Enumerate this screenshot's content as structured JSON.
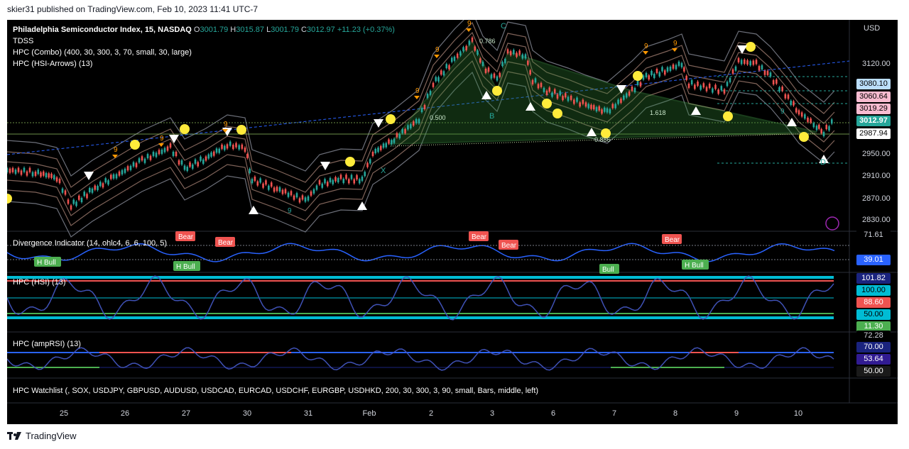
{
  "publisher": "skier31 published on TradingView.com, Feb 10, 2023 11:41 UTC-7",
  "main_pane": {
    "title": "Philadelphia Semiconductor Index, 15, NASDAQ",
    "ohlc": {
      "o_label": "O",
      "o": "3001.79",
      "h_label": "H",
      "h": "3015.87",
      "l_label": "L",
      "l": "3001.79",
      "c_label": "C",
      "c": "3012.97",
      "change": "+11.23 (+0.37%)"
    },
    "indicators": [
      "TDSS",
      "HPC (Combo) (400, 30, 300, 3, 70, small, 30, large)",
      "HPC (HSI-Arrows) (13)"
    ],
    "currency": "USD",
    "y_axis": [
      "3120.00",
      "2950.00",
      "2910.00",
      "2870.00",
      "2830.00"
    ],
    "price_tags": [
      {
        "value": "3080.10",
        "bg": "#bbdefb",
        "fg": "#000000"
      },
      {
        "value": "3060.64",
        "bg": "#f8bbd0",
        "fg": "#000000"
      },
      {
        "value": "3019.29",
        "bg": "#f8bbd0",
        "fg": "#000000"
      },
      {
        "value": "3012.97",
        "bg": "#26a69a",
        "fg": "#ffffff"
      },
      {
        "value": "2987.94",
        "bg": "#ffffff",
        "fg": "#000000"
      }
    ],
    "fib_labels": [
      "0.786",
      "0.500",
      "1.618",
      "0.886"
    ],
    "pattern_labels": [
      "C",
      "B",
      "X",
      "D"
    ],
    "count_label": "9"
  },
  "panes": [
    {
      "title": "Divergence Indicator (14, ohlc4, 6, 6, 100, 5)",
      "tags": [
        {
          "value": "71.61",
          "bg": "#000000",
          "fg": "#d1d4dc"
        },
        {
          "value": "39.01",
          "bg": "#2962ff",
          "fg": "#ffffff"
        }
      ],
      "labels": {
        "bear": "Bear",
        "hbull": "H Bull",
        "bull": "Bull"
      }
    },
    {
      "title": "HPC (HSI) (13)",
      "tags": [
        {
          "value": "101.82",
          "bg": "#1a237e",
          "fg": "#ffffff"
        },
        {
          "value": "100.00",
          "bg": "#00bcd4",
          "fg": "#000000"
        },
        {
          "value": "88.60",
          "bg": "#ef5350",
          "fg": "#ffffff"
        },
        {
          "value": "50.00",
          "bg": "#00bcd4",
          "fg": "#000000"
        },
        {
          "value": "11.30",
          "bg": "#4caf50",
          "fg": "#ffffff"
        }
      ]
    },
    {
      "title": "HPC (ampRSI) (13)",
      "tags": [
        {
          "value": "72.28",
          "bg": "#000000",
          "fg": "#d1d4dc"
        },
        {
          "value": "70.00",
          "bg": "#1a237e",
          "fg": "#ffffff"
        },
        {
          "value": "53.64",
          "bg": "#311b92",
          "fg": "#ffffff"
        },
        {
          "value": "50.00",
          "bg": "#1a1a1a",
          "fg": "#ffffff"
        }
      ]
    },
    {
      "title": "HPC Watchlist (, SOX, USDJPY, GBPUSD, AUDUSD, USDCAD, EURCAD, USDCHF, EURGBP, USDHKD, 200, 30, 300, 3, 90, small, Bars, middle, left)"
    }
  ],
  "x_axis": [
    "25",
    "26",
    "27",
    "30",
    "31",
    "Feb",
    "2",
    "3",
    "6",
    "7",
    "8",
    "9",
    "10"
  ],
  "brand": "TradingView",
  "colors": {
    "up": "#26a69a",
    "down": "#ef5350",
    "band": "#8d6e63",
    "pattern": "#2e7d32",
    "rsi": "#3f51b5"
  }
}
